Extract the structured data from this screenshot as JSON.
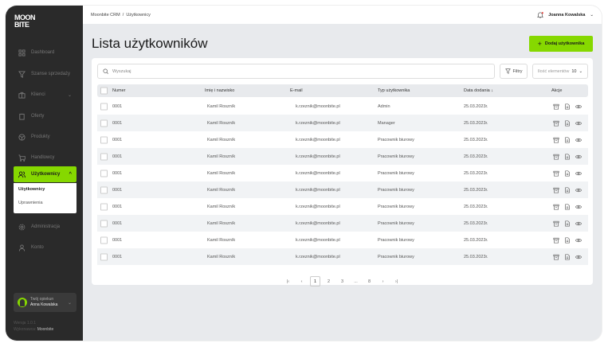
{
  "logo": "MOON BITE",
  "sidebar": {
    "items": [
      {
        "label": "Dashboard",
        "icon": "grid-icon"
      },
      {
        "label": "Szanse sprzedaży",
        "icon": "funnel-icon"
      },
      {
        "label": "Klienci",
        "icon": "briefcase-icon"
      },
      {
        "label": "Oferty",
        "icon": "clipboard-icon"
      },
      {
        "label": "Produkty",
        "icon": "box-icon"
      },
      {
        "label": "Handlowcy",
        "icon": "cart-icon"
      },
      {
        "label": "Użytkownicy",
        "icon": "users-icon"
      },
      {
        "label": "Administracja",
        "icon": "gear-icon"
      },
      {
        "label": "Konto",
        "icon": "user-icon"
      }
    ],
    "submenu": [
      "Użytkownicy",
      "Uprawnienia"
    ],
    "opiekun": {
      "label": "Twój opiekun",
      "name": "Anna Kowalska"
    },
    "version": "Wersja 1.0.1",
    "made_by_label": "Wykonawca:",
    "made_by": "Moonbite"
  },
  "header": {
    "breadcrumb": "Moonbite CRM  /  Użytkownicy",
    "user": "Joanna Kowalska"
  },
  "page": {
    "title": "Lista użytkowników",
    "add_label": "Dodaj użytkownika"
  },
  "toolbar": {
    "search_placeholder": "Wyszukaj",
    "filters": "Filtry",
    "per_page_label": "Ilość elementów",
    "per_page": "10"
  },
  "table": {
    "headers": [
      "Numer",
      "Imię i nazwisko",
      "E-mail",
      "Typ użytkownika",
      "Data dodania ↓",
      "Akcje"
    ],
    "rows": [
      [
        "0001",
        "Kamil Roszník",
        "k.rzeznik@moonbite.pl",
        "Admin",
        "25.03.2023r."
      ],
      [
        "0001",
        "Kamil Roszník",
        "k.rzeznik@moonbite.pl",
        "Manager",
        "25.03.2023r."
      ],
      [
        "0001",
        "Kamil Roszník",
        "k.rzeznik@moonbite.pl",
        "Pracownik biurowy",
        "25.03.2023r."
      ],
      [
        "0001",
        "Kamil Roszník",
        "k.rzeznik@moonbite.pl",
        "Pracownik biurowy",
        "25.03.2023r."
      ],
      [
        "0001",
        "Kamil Roszník",
        "k.rzeznik@moonbite.pl",
        "Pracownik biurowy",
        "25.03.2023r."
      ],
      [
        "0001",
        "Kamil Roszník",
        "k.rzeznik@moonbite.pl",
        "Pracownik biurowy",
        "25.03.2023r."
      ],
      [
        "0001",
        "Kamil Roszník",
        "k.rzeznik@moonbite.pl",
        "Pracownik biurowy",
        "25.03.2023r."
      ],
      [
        "0001",
        "Kamil Roszník",
        "k.rzeznik@moonbite.pl",
        "Pracownik biurowy",
        "25.03.2023r."
      ],
      [
        "0001",
        "Kamil Roszník",
        "k.rzeznik@moonbite.pl",
        "Pracownik biurowy",
        "25.03.2023r."
      ],
      [
        "0001",
        "Kamil Roszník",
        "k.rzeznik@moonbite.pl",
        "Pracownik biurowy",
        "25.03.2023r."
      ]
    ]
  },
  "pagination": {
    "pages": [
      "1",
      "2",
      "3",
      "...",
      "8"
    ],
    "current": "1"
  },
  "colors": {
    "accent": "#86d800",
    "sidebar": "#2a2a2a"
  }
}
